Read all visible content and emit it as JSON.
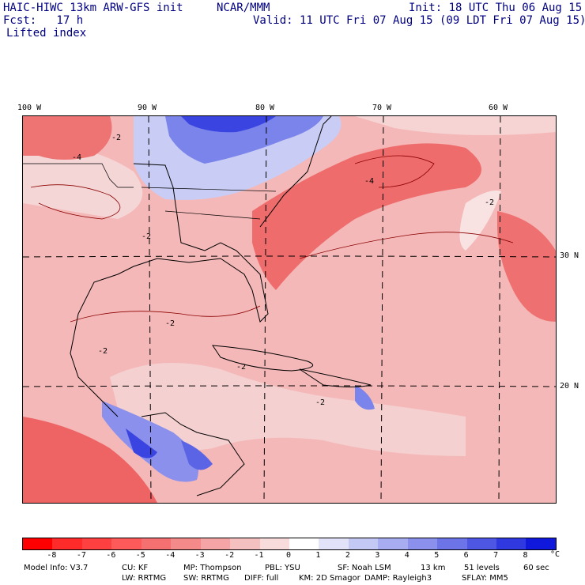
{
  "header": {
    "model_line": "HAIC-HIWC 13km ARW-GFS init",
    "org": "NCAR/MMM",
    "init": "Init: 18 UTC Thu 06 Aug 15",
    "fcst": "Fcst:   17 h",
    "valid": "Valid: 11 UTC Fri 07 Aug 15 (09 LDT Fri 07 Aug 15)",
    "field": "Lifted index"
  },
  "map": {
    "lon_labels": [
      "100 W",
      "90 W",
      "80 W",
      "70 W",
      "60 W"
    ],
    "lat_labels": [
      "30 N",
      "20 N"
    ],
    "contour_labels": [
      "-2",
      "-4"
    ]
  },
  "colorbar": {
    "unit": "°C",
    "ticks": [
      "-8",
      "-7",
      "-6",
      "-5",
      "-4",
      "-3",
      "-2",
      "-1",
      "0",
      "1",
      "2",
      "3",
      "4",
      "5",
      "6",
      "7",
      "8"
    ],
    "colors": [
      "#ff0000",
      "#ff2a2a",
      "#ff4040",
      "#ff5a5a",
      "#f57070",
      "#f58a8a",
      "#f5a5a5",
      "#f5c0c0",
      "#f8dcdc",
      "#ffffff",
      "#e2e2f8",
      "#c4c8f4",
      "#a8acf0",
      "#8a90ec",
      "#6c74e8",
      "#4e56e4",
      "#3038e0",
      "#1018dc"
    ]
  },
  "footer": {
    "line1": {
      "model_info": "Model Info: V3.7",
      "cu": "CU: KF",
      "mp": "MP: Thompson",
      "pbl": "PBL: YSU",
      "sf": "SF: Noah LSM",
      "res": "13 km",
      "levels": "51 levels",
      "dt": "60 sec"
    },
    "line2": {
      "lw": "LW: RRTMG",
      "sw": "SW: RRTMG",
      "diff": "DIFF: full",
      "km": "KM: 2D Smagor",
      "damp": "DAMP: Rayleigh3",
      "sflay": "SFLAY: MM5"
    }
  }
}
